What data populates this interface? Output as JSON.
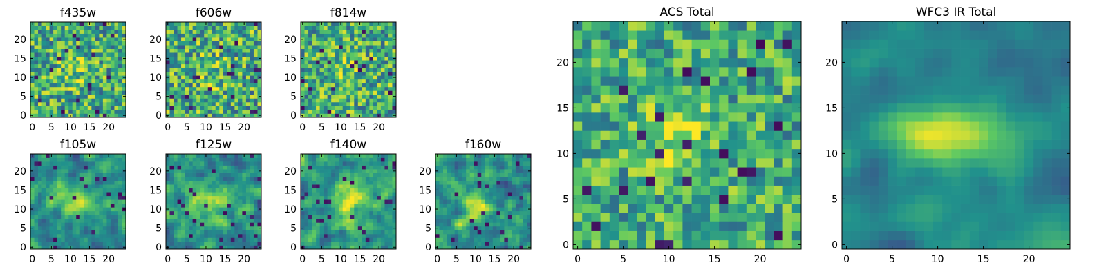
{
  "figure": {
    "type": "heatmap-grid",
    "colormap": "viridis",
    "colormap_stops": [
      "#440154",
      "#3b528b",
      "#21918c",
      "#5ec962",
      "#fde725"
    ]
  },
  "chart_data": [
    {
      "type": "heatmap",
      "title": "f435w",
      "grid": [
        25,
        25
      ],
      "xlim": [
        0,
        24
      ],
      "ylim": [
        0,
        24
      ],
      "xticks": [
        "0",
        "5",
        "10",
        "15",
        "20"
      ],
      "yticks": [
        "0",
        "5",
        "10",
        "15",
        "20"
      ],
      "pattern": "noise",
      "noise": 0.33,
      "bias": 0.62,
      "blob": [
        11,
        11,
        3.0,
        3.0,
        0.15
      ],
      "mean_level": 0.62
    },
    {
      "type": "heatmap",
      "title": "f606w",
      "grid": [
        25,
        25
      ],
      "xlim": [
        0,
        24
      ],
      "ylim": [
        0,
        24
      ],
      "xticks": [
        "0",
        "5",
        "10",
        "15",
        "20"
      ],
      "yticks": [
        "0",
        "5",
        "10",
        "15",
        "20"
      ],
      "pattern": "noise",
      "noise": 0.35,
      "bias": 0.62,
      "blob": [
        11,
        12,
        2.5,
        4.0,
        0.12
      ],
      "mean_level": 0.62
    },
    {
      "type": "heatmap",
      "title": "f814w",
      "grid": [
        25,
        25
      ],
      "xlim": [
        0,
        24
      ],
      "ylim": [
        0,
        24
      ],
      "xticks": [
        "0",
        "5",
        "10",
        "15",
        "20"
      ],
      "yticks": [
        "0",
        "5",
        "10",
        "15",
        "20"
      ],
      "pattern": "noise",
      "noise": 0.33,
      "bias": 0.63,
      "blob": [
        11,
        12,
        2.5,
        3.0,
        0.18
      ],
      "mean_level": 0.63
    },
    {
      "type": "heatmap",
      "title": "f105w",
      "grid": [
        25,
        25
      ],
      "xlim": [
        0,
        24
      ],
      "ylim": [
        0,
        24
      ],
      "xticks": [
        "0",
        "5",
        "10",
        "15",
        "20"
      ],
      "yticks": [
        "0",
        "5",
        "10",
        "15",
        "20"
      ],
      "pattern": "smooth",
      "noise": 0.24,
      "bias": 0.5,
      "blob": [
        11,
        12,
        5.0,
        2.5,
        0.35
      ],
      "mean_level": 0.55
    },
    {
      "type": "heatmap",
      "title": "f125w",
      "grid": [
        25,
        25
      ],
      "xlim": [
        0,
        24
      ],
      "ylim": [
        0,
        24
      ],
      "xticks": [
        "0",
        "5",
        "10",
        "15",
        "20"
      ],
      "yticks": [
        "0",
        "5",
        "10",
        "15",
        "20"
      ],
      "pattern": "smooth",
      "noise": 0.26,
      "bias": 0.5,
      "blob": [
        11,
        12,
        4.0,
        3.0,
        0.35
      ],
      "mean_level": 0.55
    },
    {
      "type": "heatmap",
      "title": "f140w",
      "grid": [
        25,
        25
      ],
      "xlim": [
        0,
        24
      ],
      "ylim": [
        0,
        24
      ],
      "xticks": [
        "0",
        "5",
        "10",
        "15",
        "20"
      ],
      "yticks": [
        "0",
        "5",
        "10",
        "15",
        "20"
      ],
      "pattern": "smooth",
      "noise": 0.26,
      "bias": 0.55,
      "blob": [
        13,
        12,
        3.5,
        3.5,
        0.3
      ],
      "mean_level": 0.58
    },
    {
      "type": "heatmap",
      "title": "f160w",
      "grid": [
        25,
        25
      ],
      "xlim": [
        0,
        24
      ],
      "ylim": [
        0,
        24
      ],
      "xticks": [
        "0",
        "5",
        "10",
        "15",
        "20"
      ],
      "yticks": [
        "0",
        "5",
        "10",
        "15",
        "20"
      ],
      "pattern": "smooth",
      "noise": 0.27,
      "bias": 0.5,
      "blob": [
        10,
        11,
        3.0,
        3.5,
        0.35
      ],
      "mean_level": 0.52
    },
    {
      "type": "heatmap",
      "title": "ACS Total",
      "grid": [
        25,
        25
      ],
      "xlim": [
        0,
        24
      ],
      "ylim": [
        0,
        24
      ],
      "xticks": [
        "0",
        "5",
        "10",
        "15",
        "20"
      ],
      "yticks": [
        "0",
        "5",
        "10",
        "15",
        "20"
      ],
      "pattern": "noise",
      "noise": 0.28,
      "bias": 0.62,
      "blob": [
        11,
        12,
        2.5,
        2.5,
        0.3
      ],
      "mean_level": 0.62
    },
    {
      "type": "heatmap",
      "title": "WFC3 IR Total",
      "grid": [
        25,
        25
      ],
      "xlim": [
        0,
        24
      ],
      "ylim": [
        0,
        24
      ],
      "xticks": [
        "0",
        "5",
        "10",
        "15",
        "20"
      ],
      "yticks": [
        "0",
        "5",
        "10",
        "15",
        "20"
      ],
      "pattern": "galaxy",
      "noise": 0.1,
      "bias": 0.45,
      "blob": [
        11,
        12,
        4.5,
        2.0,
        0.55
      ],
      "mean_level": 0.48
    }
  ]
}
